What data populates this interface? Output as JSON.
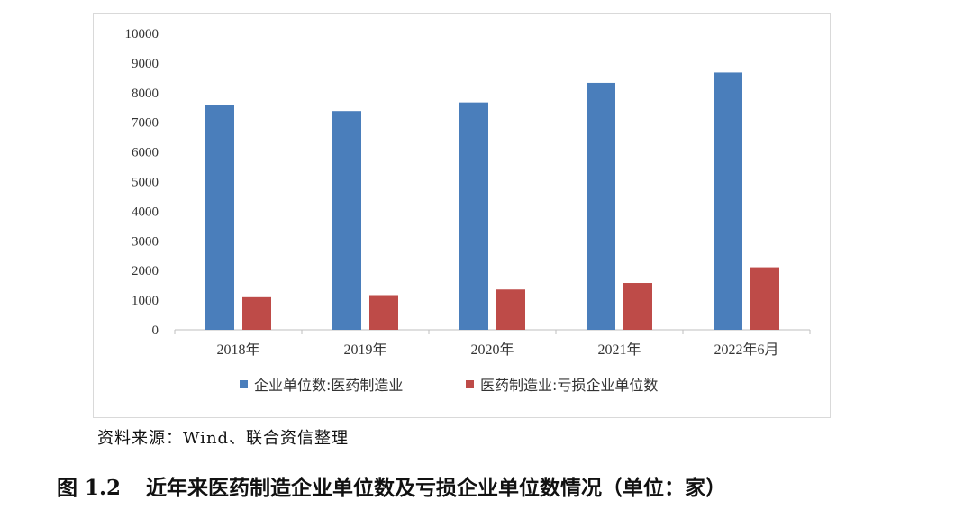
{
  "chart_data": {
    "type": "bar",
    "categories": [
      "2018年",
      "2019年",
      "2020年",
      "2021年",
      "2022年6月"
    ],
    "series": [
      {
        "name": "企业单位数:医药制造业",
        "values": [
          7580,
          7380,
          7670,
          8330,
          8680
        ],
        "color": "#4a7ebb"
      },
      {
        "name": "医药制造业:亏损企业单位数",
        "values": [
          1100,
          1170,
          1360,
          1580,
          2110
        ],
        "color": "#be4b48"
      }
    ],
    "ylim": [
      0,
      10000
    ],
    "yticks": [
      0,
      1000,
      2000,
      3000,
      4000,
      5000,
      6000,
      7000,
      8000,
      9000,
      10000
    ],
    "grid": false,
    "legend_position": "bottom"
  },
  "source": "资料来源：Wind、联合资信整理",
  "caption": {
    "number": "图 1.2",
    "title": "近年来医药制造企业单位数及亏损企业单位数情况（单位：家）"
  }
}
